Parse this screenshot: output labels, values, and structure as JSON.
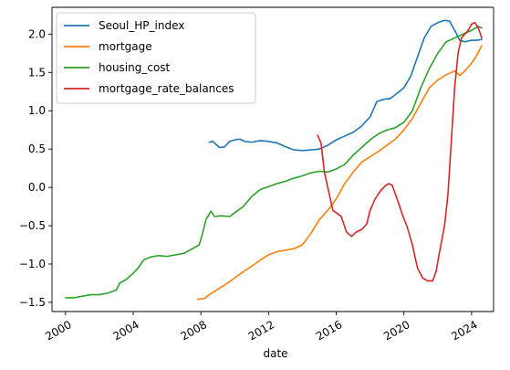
{
  "chart_data": {
    "type": "line",
    "title": "",
    "xlabel": "date",
    "ylabel": "",
    "xlim": [
      1999.2,
      2025.3
    ],
    "ylim": [
      -1.62,
      2.35
    ],
    "xticks": [
      {
        "value": 2000,
        "label": "2000"
      },
      {
        "value": 2004,
        "label": "2004"
      },
      {
        "value": 2008,
        "label": "2008"
      },
      {
        "value": 2012,
        "label": "2012"
      },
      {
        "value": 2016,
        "label": "2016"
      },
      {
        "value": 2020,
        "label": "2020"
      },
      {
        "value": 2024,
        "label": "2024"
      }
    ],
    "yticks": [
      {
        "value": -1.5,
        "label": "−1.5"
      },
      {
        "value": -1.0,
        "label": "−1.0"
      },
      {
        "value": -0.5,
        "label": "−0.5"
      },
      {
        "value": 0.0,
        "label": "0.0"
      },
      {
        "value": 0.5,
        "label": "0.5"
      },
      {
        "value": 1.0,
        "label": "1.0"
      },
      {
        "value": 1.5,
        "label": "1.5"
      },
      {
        "value": 2.0,
        "label": "2.0"
      }
    ],
    "legend_position": "top-left",
    "series": [
      {
        "name": "Seoul_HP_index",
        "color": "#1f77b4",
        "points": [
          [
            2008.5,
            0.59
          ],
          [
            2008.7,
            0.6
          ],
          [
            2008.9,
            0.56
          ],
          [
            2009.1,
            0.52
          ],
          [
            2009.4,
            0.53
          ],
          [
            2009.7,
            0.6
          ],
          [
            2010.0,
            0.62
          ],
          [
            2010.3,
            0.63
          ],
          [
            2010.6,
            0.6
          ],
          [
            2011.0,
            0.59
          ],
          [
            2011.5,
            0.61
          ],
          [
            2012.0,
            0.6
          ],
          [
            2012.5,
            0.58
          ],
          [
            2013.0,
            0.53
          ],
          [
            2013.5,
            0.49
          ],
          [
            2014.0,
            0.48
          ],
          [
            2014.5,
            0.49
          ],
          [
            2015.0,
            0.5
          ],
          [
            2015.5,
            0.55
          ],
          [
            2016.0,
            0.62
          ],
          [
            2016.5,
            0.67
          ],
          [
            2017.0,
            0.72
          ],
          [
            2017.5,
            0.8
          ],
          [
            2018.0,
            0.92
          ],
          [
            2018.4,
            1.12
          ],
          [
            2018.8,
            1.15
          ],
          [
            2019.2,
            1.16
          ],
          [
            2019.6,
            1.23
          ],
          [
            2020.0,
            1.3
          ],
          [
            2020.4,
            1.45
          ],
          [
            2020.8,
            1.7
          ],
          [
            2021.2,
            1.95
          ],
          [
            2021.6,
            2.1
          ],
          [
            2022.0,
            2.15
          ],
          [
            2022.4,
            2.18
          ],
          [
            2022.7,
            2.17
          ],
          [
            2023.0,
            2.05
          ],
          [
            2023.3,
            1.92
          ],
          [
            2023.6,
            1.9
          ],
          [
            2024.0,
            1.92
          ],
          [
            2024.3,
            1.92
          ],
          [
            2024.6,
            1.93
          ]
        ]
      },
      {
        "name": "mortgage",
        "color": "#ff7f0e",
        "points": [
          [
            2007.8,
            -1.46
          ],
          [
            2008.2,
            -1.45
          ],
          [
            2008.5,
            -1.4
          ],
          [
            2009.0,
            -1.33
          ],
          [
            2009.5,
            -1.26
          ],
          [
            2010.0,
            -1.18
          ],
          [
            2010.5,
            -1.1
          ],
          [
            2011.0,
            -1.03
          ],
          [
            2011.5,
            -0.95
          ],
          [
            2012.0,
            -0.88
          ],
          [
            2012.5,
            -0.84
          ],
          [
            2013.0,
            -0.82
          ],
          [
            2013.5,
            -0.8
          ],
          [
            2014.0,
            -0.75
          ],
          [
            2014.5,
            -0.6
          ],
          [
            2015.0,
            -0.42
          ],
          [
            2015.5,
            -0.3
          ],
          [
            2016.0,
            -0.15
          ],
          [
            2016.5,
            0.05
          ],
          [
            2017.0,
            0.2
          ],
          [
            2017.5,
            0.33
          ],
          [
            2018.0,
            0.4
          ],
          [
            2018.5,
            0.47
          ],
          [
            2019.0,
            0.55
          ],
          [
            2019.5,
            0.63
          ],
          [
            2020.0,
            0.75
          ],
          [
            2020.5,
            0.9
          ],
          [
            2021.0,
            1.1
          ],
          [
            2021.5,
            1.3
          ],
          [
            2022.0,
            1.4
          ],
          [
            2022.5,
            1.47
          ],
          [
            2023.0,
            1.52
          ],
          [
            2023.3,
            1.46
          ],
          [
            2023.6,
            1.52
          ],
          [
            2024.0,
            1.62
          ],
          [
            2024.3,
            1.72
          ],
          [
            2024.6,
            1.85
          ]
        ]
      },
      {
        "name": "housing_cost",
        "color": "#2ca02c",
        "points": [
          [
            2000.0,
            -1.44
          ],
          [
            2000.5,
            -1.44
          ],
          [
            2001.0,
            -1.42
          ],
          [
            2001.5,
            -1.4
          ],
          [
            2002.0,
            -1.4
          ],
          [
            2002.5,
            -1.38
          ],
          [
            2003.0,
            -1.34
          ],
          [
            2003.2,
            -1.25
          ],
          [
            2003.6,
            -1.2
          ],
          [
            2004.0,
            -1.12
          ],
          [
            2004.3,
            -1.05
          ],
          [
            2004.6,
            -0.95
          ],
          [
            2005.0,
            -0.91
          ],
          [
            2005.5,
            -0.89
          ],
          [
            2006.0,
            -0.9
          ],
          [
            2006.5,
            -0.88
          ],
          [
            2007.0,
            -0.86
          ],
          [
            2007.5,
            -0.8
          ],
          [
            2007.9,
            -0.75
          ],
          [
            2008.1,
            -0.6
          ],
          [
            2008.3,
            -0.42
          ],
          [
            2008.6,
            -0.31
          ],
          [
            2008.8,
            -0.38
          ],
          [
            2009.2,
            -0.37
          ],
          [
            2009.7,
            -0.38
          ],
          [
            2010.0,
            -0.33
          ],
          [
            2010.5,
            -0.25
          ],
          [
            2011.0,
            -0.12
          ],
          [
            2011.5,
            -0.03
          ],
          [
            2012.0,
            0.01
          ],
          [
            2012.5,
            0.05
          ],
          [
            2013.0,
            0.08
          ],
          [
            2013.5,
            0.12
          ],
          [
            2014.0,
            0.15
          ],
          [
            2014.5,
            0.19
          ],
          [
            2015.0,
            0.21
          ],
          [
            2015.5,
            0.2
          ],
          [
            2016.0,
            0.24
          ],
          [
            2016.5,
            0.3
          ],
          [
            2017.0,
            0.42
          ],
          [
            2017.5,
            0.52
          ],
          [
            2018.0,
            0.62
          ],
          [
            2018.5,
            0.7
          ],
          [
            2019.0,
            0.75
          ],
          [
            2019.5,
            0.78
          ],
          [
            2020.0,
            0.85
          ],
          [
            2020.5,
            1.0
          ],
          [
            2021.0,
            1.3
          ],
          [
            2021.5,
            1.55
          ],
          [
            2022.0,
            1.75
          ],
          [
            2022.5,
            1.9
          ],
          [
            2023.0,
            1.95
          ],
          [
            2023.5,
            2.0
          ],
          [
            2024.0,
            2.05
          ],
          [
            2024.4,
            2.1
          ],
          [
            2024.6,
            2.08
          ]
        ]
      },
      {
        "name": "mortgage_rate_balances",
        "color": "#d62728",
        "points": [
          [
            2014.9,
            0.68
          ],
          [
            2015.1,
            0.58
          ],
          [
            2015.3,
            0.2
          ],
          [
            2015.6,
            -0.1
          ],
          [
            2015.8,
            -0.3
          ],
          [
            2016.0,
            -0.33
          ],
          [
            2016.3,
            -0.38
          ],
          [
            2016.6,
            -0.58
          ],
          [
            2016.9,
            -0.64
          ],
          [
            2017.2,
            -0.58
          ],
          [
            2017.5,
            -0.55
          ],
          [
            2017.8,
            -0.48
          ],
          [
            2018.0,
            -0.3
          ],
          [
            2018.3,
            -0.15
          ],
          [
            2018.6,
            -0.05
          ],
          [
            2018.9,
            0.02
          ],
          [
            2019.1,
            0.05
          ],
          [
            2019.3,
            0.03
          ],
          [
            2019.6,
            -0.15
          ],
          [
            2019.9,
            -0.35
          ],
          [
            2020.2,
            -0.52
          ],
          [
            2020.5,
            -0.75
          ],
          [
            2020.8,
            -1.05
          ],
          [
            2021.1,
            -1.18
          ],
          [
            2021.4,
            -1.22
          ],
          [
            2021.7,
            -1.22
          ],
          [
            2021.9,
            -1.1
          ],
          [
            2022.1,
            -0.85
          ],
          [
            2022.4,
            -0.5
          ],
          [
            2022.6,
            -0.1
          ],
          [
            2022.8,
            0.6
          ],
          [
            2023.0,
            1.3
          ],
          [
            2023.2,
            1.75
          ],
          [
            2023.4,
            1.95
          ],
          [
            2023.6,
            2.0
          ],
          [
            2023.8,
            2.05
          ],
          [
            2024.0,
            2.13
          ],
          [
            2024.2,
            2.15
          ],
          [
            2024.4,
            2.08
          ],
          [
            2024.6,
            1.95
          ]
        ]
      }
    ]
  }
}
